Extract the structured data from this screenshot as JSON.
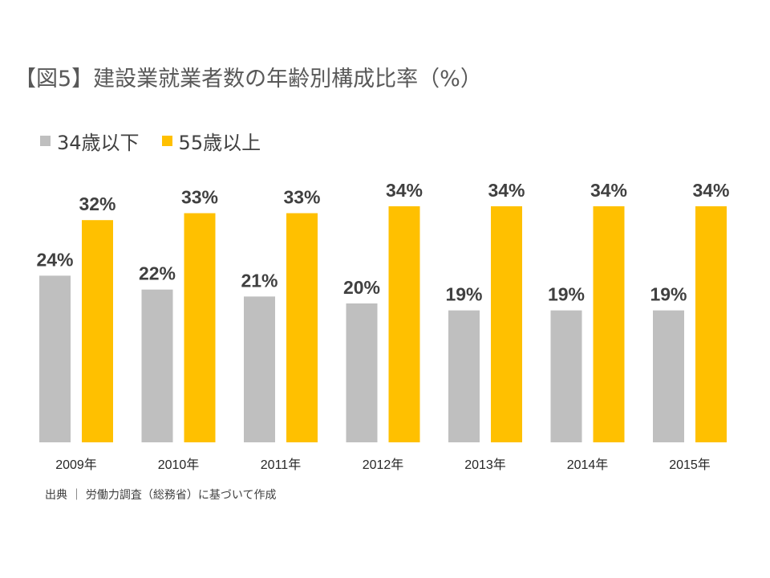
{
  "chart_data": {
    "type": "bar",
    "title": "【図5】建設業就業者数の年齢別構成比率（%）",
    "categories": [
      "2009年",
      "2010年",
      "2011年",
      "2012年",
      "2013年",
      "2014年",
      "2015年"
    ],
    "series": [
      {
        "name": "34歳以下",
        "color": "#bfbfbf",
        "values": [
          24,
          22,
          21,
          20,
          19,
          19,
          19
        ],
        "labels": [
          "24%",
          "22%",
          "21%",
          "20%",
          "19%",
          "19%",
          "19%"
        ]
      },
      {
        "name": "55歳以上",
        "color": "#ffc000",
        "values": [
          32,
          33,
          33,
          34,
          34,
          34,
          34
        ],
        "labels": [
          "32%",
          "33%",
          "33%",
          "34%",
          "34%",
          "34%",
          "34%"
        ]
      }
    ],
    "ylim": [
      0,
      40
    ],
    "grid": false,
    "legend_position": "top-left",
    "source": "出典 ｜ 労働力調査（総務省）に基づいて作成"
  }
}
